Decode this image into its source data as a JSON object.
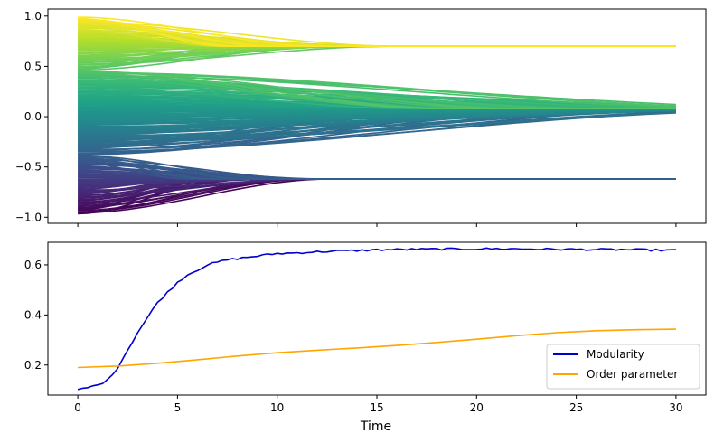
{
  "chart_data": [
    {
      "type": "line",
      "title": "",
      "xlabel": "",
      "ylabel": "",
      "xlim": [
        -1.5,
        31.5
      ],
      "ylim": [
        -1.06,
        1.07
      ],
      "xticks": [
        0,
        5,
        10,
        15,
        20,
        25,
        30
      ],
      "show_xtick_labels": false,
      "yticks": [
        -1.0,
        -0.5,
        0.0,
        0.5,
        1.0
      ],
      "ytick_labels": [
        "−1.0",
        "−0.5",
        "0.0",
        "0.5",
        "1.0"
      ],
      "colormap": "viridis",
      "grid": false,
      "x_range": [
        0,
        30
      ],
      "clusters": [
        {
          "initial_min": -0.97,
          "initial_max": -0.38,
          "final": -0.62,
          "count": 70,
          "convergence_time": 9
        },
        {
          "initial_min": -0.38,
          "initial_max": 0.46,
          "final": 0.08,
          "count": 110,
          "convergence_time": 28
        },
        {
          "initial_min": 0.46,
          "initial_max": 0.99,
          "final": 0.7,
          "count": 60,
          "convergence_time": 12
        }
      ]
    },
    {
      "type": "line",
      "title": "",
      "xlabel": "Time",
      "ylabel": "",
      "xlim": [
        -1.5,
        31.5
      ],
      "ylim": [
        0.08,
        0.69
      ],
      "xticks": [
        0,
        5,
        10,
        15,
        20,
        25,
        30
      ],
      "yticks": [
        0.2,
        0.4,
        0.6
      ],
      "legend": "lower-right",
      "grid": false,
      "series": [
        {
          "name": "Modularity",
          "color": "#0000cd",
          "x": [
            0,
            0.5,
            1,
            1.5,
            2,
            2.5,
            3,
            3.5,
            4,
            4.5,
            5,
            5.5,
            6,
            6.5,
            7,
            7.5,
            8,
            9,
            10,
            11,
            12,
            13,
            14,
            15,
            16,
            17,
            18,
            19,
            20,
            21,
            22,
            23,
            24,
            25,
            26,
            27,
            28,
            29,
            30
          ],
          "values": [
            0.1,
            0.11,
            0.12,
            0.14,
            0.19,
            0.26,
            0.33,
            0.39,
            0.45,
            0.49,
            0.53,
            0.56,
            0.58,
            0.6,
            0.61,
            0.62,
            0.625,
            0.635,
            0.645,
            0.648,
            0.652,
            0.655,
            0.657,
            0.66,
            0.661,
            0.662,
            0.663,
            0.663,
            0.664,
            0.664,
            0.664,
            0.663,
            0.662,
            0.662,
            0.661,
            0.661,
            0.66,
            0.659,
            0.658
          ]
        },
        {
          "name": "Order parameter",
          "color": "#ffa500",
          "x": [
            0,
            2,
            4,
            6,
            8,
            10,
            12,
            14,
            16,
            18,
            20,
            22,
            24,
            26,
            28,
            30
          ],
          "values": [
            0.19,
            0.196,
            0.207,
            0.221,
            0.236,
            0.249,
            0.259,
            0.268,
            0.278,
            0.29,
            0.303,
            0.317,
            0.329,
            0.337,
            0.341,
            0.343
          ]
        }
      ]
    }
  ]
}
